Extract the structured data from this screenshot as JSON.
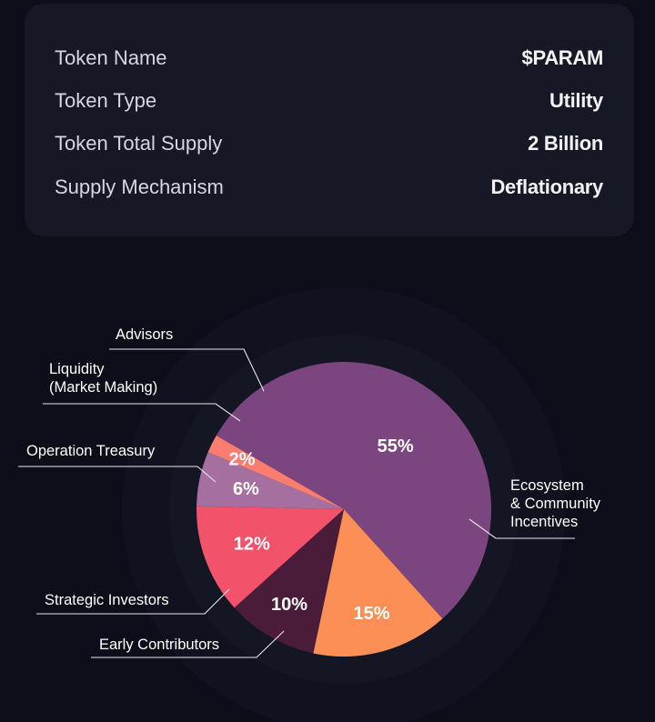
{
  "token_info": [
    {
      "label": "Token Name",
      "value": "$PARAM"
    },
    {
      "label": "Token Type",
      "value": "Utility"
    },
    {
      "label": "Token Total Supply",
      "value": "2 Billion"
    },
    {
      "label": "Supply Mechanism",
      "value": "Deflationary"
    }
  ],
  "chart_data": {
    "type": "pie",
    "title": "",
    "slices": [
      {
        "label": "Ecosystem & Community Incentives",
        "label_lines": [
          "Ecosystem",
          "& Community",
          "Incentives"
        ],
        "value": 55,
        "display": "55%",
        "color": "#7b467f"
      },
      {
        "label": "Early Contributors",
        "label_lines": [
          "Early Contributors"
        ],
        "value": 15,
        "display": "15%",
        "color": "#fc8f55"
      },
      {
        "label": "Strategic Investors",
        "label_lines": [
          "Strategic Investors"
        ],
        "value": 10,
        "display": "10%",
        "color": "#4a1c3a"
      },
      {
        "label": "Operation Treasury",
        "label_lines": [
          "Operation Treasury"
        ],
        "value": 12,
        "display": "12%",
        "color": "#f2526a"
      },
      {
        "label": "Liquidity (Market Making)",
        "label_lines": [
          "Liquidity",
          "(Market Making)"
        ],
        "value": 6,
        "display": "6%",
        "color": "#a56f9f"
      },
      {
        "label": "Advisors",
        "label_lines": [
          "Advisors"
        ],
        "value": 2,
        "display": "2%",
        "color": "#fb7d6f"
      }
    ],
    "start_angle_deg": -60,
    "direction": "clockwise",
    "legend": "callout-labels"
  }
}
